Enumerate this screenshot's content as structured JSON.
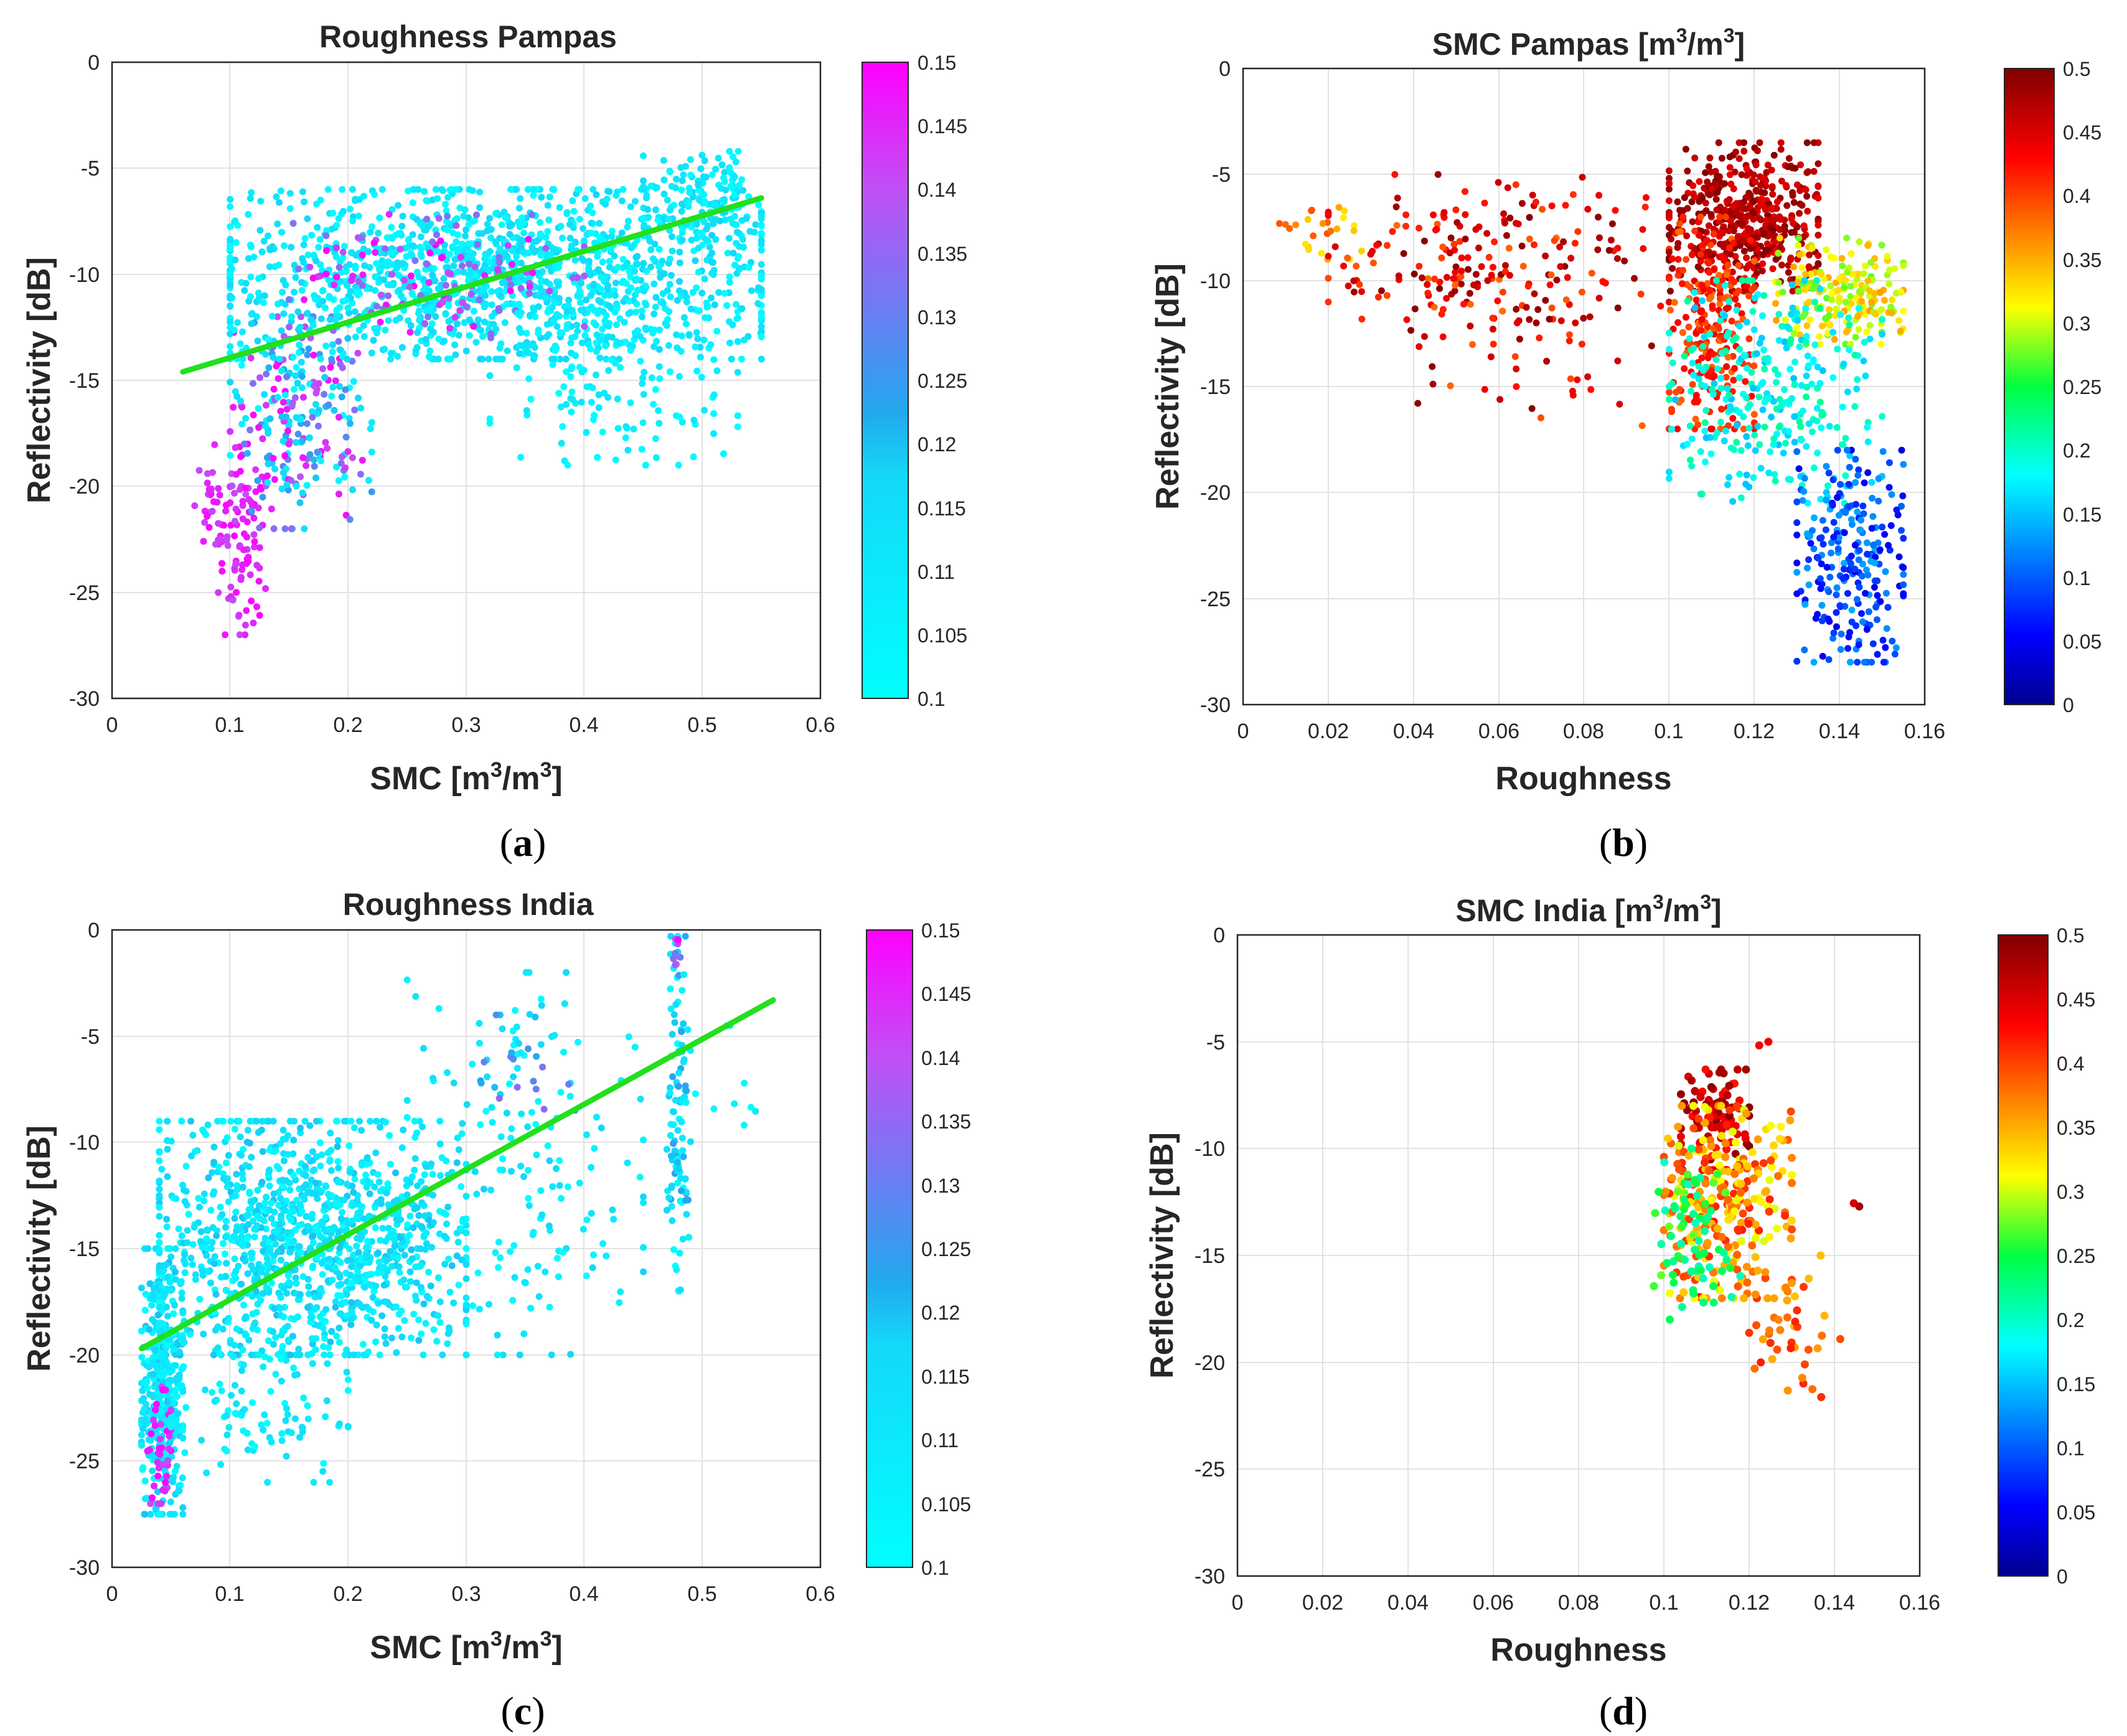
{
  "figure_labels": [
    "a",
    "b",
    "c",
    "d"
  ],
  "chart_data": [
    {
      "id": "a",
      "type": "scatter",
      "title": "Roughness Pampas",
      "xlabel": "SMC [m³/m³]",
      "xlabel_parts": {
        "main": "SMC [m",
        "sup1": "3",
        "mid": "/m",
        "sup2": "3",
        "end": "]"
      },
      "ylabel": "Reflectivity [dB]",
      "xlim": [
        0,
        0.6
      ],
      "ylim": [
        -30,
        0
      ],
      "xticks": [
        "0",
        "0.1",
        "0.2",
        "0.3",
        "0.4",
        "0.5",
        "0.6"
      ],
      "yticks": [
        "0",
        "-5",
        "-10",
        "-15",
        "-20",
        "-25",
        "-30"
      ],
      "grid": true,
      "colorbar": {
        "colormap": "cool-cyan-magenta",
        "range": [
          0.1,
          0.15
        ],
        "ticks": [
          "0.15",
          "0.145",
          "0.14",
          "0.135",
          "0.13",
          "0.125",
          "0.12",
          "0.115",
          "0.11",
          "0.105",
          "0.1"
        ]
      },
      "fit_line": {
        "x": [
          0.06,
          0.55
        ],
        "y": [
          -14.6,
          -6.4
        ],
        "color": "#22e01c"
      },
      "clusters": [
        {
          "x": [
            0.09,
            0.13
          ],
          "y": [
            -27,
            -18
          ],
          "c": [
            0.14,
            0.15
          ],
          "n": 90
        },
        {
          "x": [
            0.07,
            0.1
          ],
          "y": [
            -24,
            -18
          ],
          "c": [
            0.14,
            0.15
          ],
          "n": 30
        },
        {
          "x": [
            0.1,
            0.22
          ],
          "y": [
            -22,
            -12
          ],
          "c": [
            0.1,
            0.15
          ],
          "n": 260
        },
        {
          "x": [
            0.1,
            0.55
          ],
          "y": [
            -14,
            -6
          ],
          "c": [
            0.1,
            0.118
          ],
          "n": 1400
        },
        {
          "x": [
            0.15,
            0.4
          ],
          "y": [
            -13,
            -7
          ],
          "c": [
            0.13,
            0.15
          ],
          "n": 120
        },
        {
          "x": [
            0.32,
            0.53
          ],
          "y": [
            -19,
            -11
          ],
          "c": [
            0.1,
            0.112
          ],
          "n": 140
        },
        {
          "x": [
            0.45,
            0.55
          ],
          "y": [
            -9,
            -4.2
          ],
          "c": [
            0.1,
            0.118
          ],
          "n": 160
        }
      ]
    },
    {
      "id": "b",
      "type": "scatter",
      "title": "SMC Pampas [m³/m³]",
      "title_parts": {
        "main": "SMC Pampas [m",
        "sup1": "3",
        "mid": "/m",
        "sup2": "3",
        "end": "]"
      },
      "xlabel": "Roughness",
      "ylabel": "Reflectivity [dB]",
      "xlim": [
        0,
        0.16
      ],
      "ylim": [
        -30,
        0
      ],
      "xticks": [
        "0",
        "0.02",
        "0.04",
        "0.06",
        "0.08",
        "0.1",
        "0.12",
        "0.14",
        "0.16"
      ],
      "yticks": [
        "0",
        "-5",
        "-10",
        "-15",
        "-20",
        "-25",
        "-30"
      ],
      "grid": true,
      "colorbar": {
        "colormap": "jet",
        "range": [
          0,
          0.5
        ],
        "ticks": [
          "0.5",
          "0.45",
          "0.4",
          "0.35",
          "0.3",
          "0.25",
          "0.2",
          "0.15",
          "0.1",
          "0.05",
          "0"
        ]
      },
      "clusters": [
        {
          "x": [
            0.005,
            0.03
          ],
          "y": [
            -9,
            -6.5
          ],
          "c": [
            0.32,
            0.4
          ],
          "n": 25
        },
        {
          "x": [
            0.02,
            0.1
          ],
          "y": [
            -13,
            -5
          ],
          "c": [
            0.38,
            0.5
          ],
          "n": 220
        },
        {
          "x": [
            0.04,
            0.1
          ],
          "y": [
            -17.5,
            -12
          ],
          "c": [
            0.38,
            0.5
          ],
          "n": 30
        },
        {
          "x": [
            0.1,
            0.135
          ],
          "y": [
            -10.5,
            -3.5
          ],
          "c": [
            0.44,
            0.5
          ],
          "n": 480
        },
        {
          "x": [
            0.1,
            0.12
          ],
          "y": [
            -17,
            -7
          ],
          "c": [
            0.38,
            0.44
          ],
          "n": 230
        },
        {
          "x": [
            0.125,
            0.155
          ],
          "y": [
            -13,
            -8
          ],
          "c": [
            0.27,
            0.36
          ],
          "n": 190
        },
        {
          "x": [
            0.1,
            0.15
          ],
          "y": [
            -20.5,
            -10
          ],
          "c": [
            0.15,
            0.22
          ],
          "n": 300
        },
        {
          "x": [
            0.13,
            0.155
          ],
          "y": [
            -28,
            -18
          ],
          "c": [
            0.04,
            0.14
          ],
          "n": 240
        }
      ]
    },
    {
      "id": "c",
      "type": "scatter",
      "title": "Roughness India",
      "xlabel": "SMC [m³/m³]",
      "xlabel_parts": {
        "main": "SMC [m",
        "sup1": "3",
        "mid": "/m",
        "sup2": "3",
        "end": "]"
      },
      "ylabel": "Reflectivity [dB]",
      "xlim": [
        0,
        0.6
      ],
      "ylim": [
        -30,
        0
      ],
      "xticks": [
        "0",
        "0.1",
        "0.2",
        "0.3",
        "0.4",
        "0.5",
        "0.6"
      ],
      "yticks": [
        "0",
        "-5",
        "-10",
        "-15",
        "-20",
        "-25",
        "-30"
      ],
      "grid": true,
      "colorbar": {
        "colormap": "cool-cyan-magenta",
        "range": [
          0.1,
          0.15
        ],
        "ticks": [
          "0.15",
          "0.145",
          "0.14",
          "0.135",
          "0.13",
          "0.125",
          "0.12",
          "0.115",
          "0.11",
          "0.105",
          "0.1"
        ]
      },
      "fit_line": {
        "x": [
          0.025,
          0.56
        ],
        "y": [
          -19.7,
          -3.3
        ],
        "color": "#22e01c"
      },
      "clusters": [
        {
          "x": [
            0.025,
            0.06
          ],
          "y": [
            -27.5,
            -15
          ],
          "c": [
            0.1,
            0.12
          ],
          "n": 420
        },
        {
          "x": [
            0.03,
            0.05
          ],
          "y": [
            -27,
            -21
          ],
          "c": [
            0.14,
            0.15
          ],
          "n": 40
        },
        {
          "x": [
            0.04,
            0.3
          ],
          "y": [
            -20,
            -9
          ],
          "c": [
            0.1,
            0.12
          ],
          "n": 1200
        },
        {
          "x": [
            0.05,
            0.2
          ],
          "y": [
            -26,
            -18
          ],
          "c": [
            0.1,
            0.115
          ],
          "n": 120
        },
        {
          "x": [
            0.25,
            0.45
          ],
          "y": [
            -20,
            -2
          ],
          "c": [
            0.1,
            0.118
          ],
          "n": 170
        },
        {
          "x": [
            0.28,
            0.4
          ],
          "y": [
            -9,
            -4
          ],
          "c": [
            0.12,
            0.135
          ],
          "n": 20
        },
        {
          "x": [
            0.47,
            0.49
          ],
          "y": [
            -17,
            -0.3
          ],
          "c": [
            0.1,
            0.125
          ],
          "n": 110
        },
        {
          "x": [
            0.475,
            0.485
          ],
          "y": [
            -2,
            -0.3
          ],
          "c": [
            0.13,
            0.15
          ],
          "n": 10
        },
        {
          "x": [
            0.49,
            0.56
          ],
          "y": [
            -10.5,
            -4.5
          ],
          "c": [
            0.1,
            0.11
          ],
          "n": 10
        }
      ]
    },
    {
      "id": "d",
      "type": "scatter",
      "title": "SMC India [m³/m³]",
      "title_parts": {
        "main": "SMC India [m",
        "sup1": "3",
        "mid": "/m",
        "sup2": "3",
        "end": "]"
      },
      "xlabel": "Roughness",
      "ylabel": "Reflectivity [dB]",
      "xlim": [
        0,
        0.16
      ],
      "ylim": [
        -30,
        0
      ],
      "xticks": [
        "0",
        "0.02",
        "0.04",
        "0.06",
        "0.08",
        "0.1",
        "0.12",
        "0.14",
        "0.16"
      ],
      "yticks": [
        "0",
        "-5",
        "-10",
        "-15",
        "-20",
        "-25",
        "-30"
      ],
      "grid": true,
      "colorbar": {
        "colormap": "jet",
        "range": [
          0,
          0.5
        ],
        "ticks": [
          "0.5",
          "0.45",
          "0.4",
          "0.35",
          "0.3",
          "0.25",
          "0.2",
          "0.15",
          "0.1",
          "0.05",
          "0"
        ]
      },
      "clusters": [
        {
          "x": [
            0.104,
            0.12
          ],
          "y": [
            -11,
            -6.3
          ],
          "c": [
            0.42,
            0.5
          ],
          "n": 90
        },
        {
          "x": [
            0.1,
            0.13
          ],
          "y": [
            -17,
            -8
          ],
          "c": [
            0.3,
            0.42
          ],
          "n": 280
        },
        {
          "x": [
            0.097,
            0.118
          ],
          "y": [
            -18,
            -10
          ],
          "c": [
            0.2,
            0.28
          ],
          "n": 70
        },
        {
          "x": [
            0.12,
            0.142
          ],
          "y": [
            -22,
            -15
          ],
          "c": [
            0.34,
            0.42
          ],
          "n": 40
        },
        {
          "x": [
            0.122,
            0.126
          ],
          "y": [
            -5.5,
            -5
          ],
          "c": [
            0.4,
            0.44
          ],
          "n": 2
        },
        {
          "x": [
            0.143,
            0.146
          ],
          "y": [
            -13,
            -12.5
          ],
          "c": [
            0.45,
            0.48
          ],
          "n": 2
        }
      ]
    }
  ]
}
